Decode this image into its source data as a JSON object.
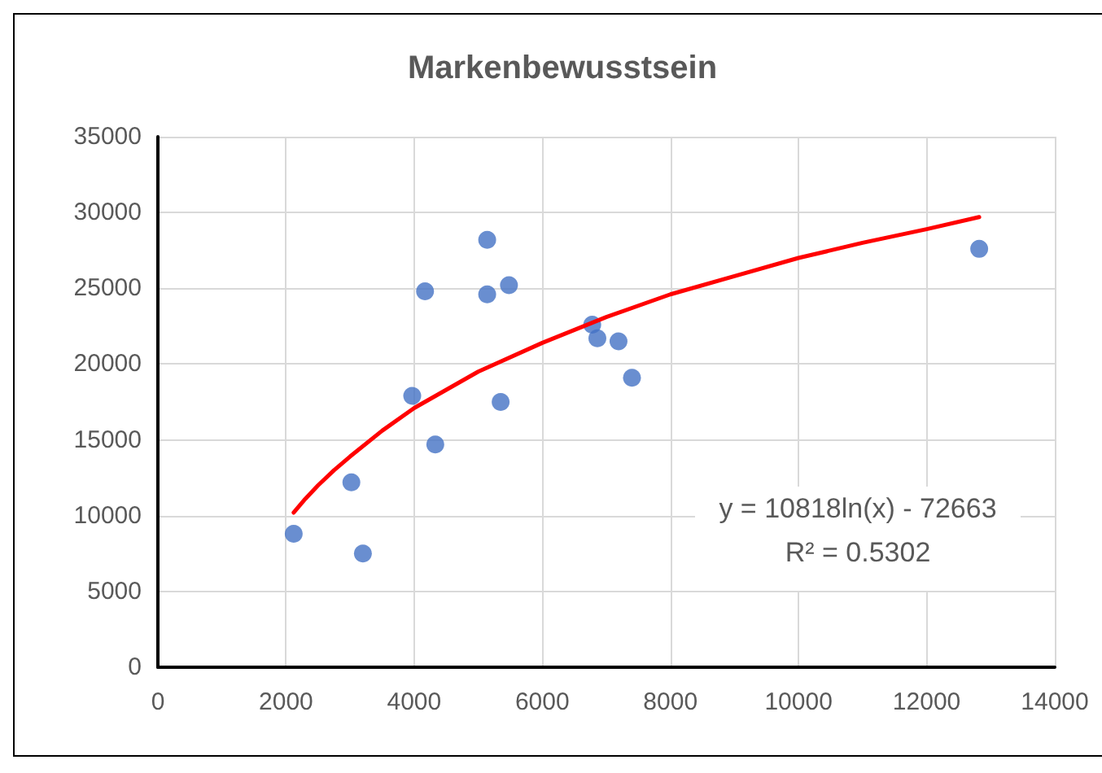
{
  "chart_data": {
    "type": "scatter",
    "title": "Markenbewusstsein",
    "xlim": [
      0,
      14000
    ],
    "xticks": [
      0,
      2000,
      4000,
      6000,
      8000,
      10000,
      12000,
      14000
    ],
    "ylim": [
      0,
      35000
    ],
    "yticks": [
      0,
      5000,
      10000,
      15000,
      20000,
      25000,
      30000,
      35000
    ],
    "grid": true,
    "marker": "circle",
    "series": [
      {
        "color": "#4472c4",
        "x": [
          2120,
          3020,
          3200,
          3970,
          4170,
          4330,
          5140,
          5140,
          5480,
          5350,
          6780,
          6860,
          7190,
          7400,
          12820
        ],
        "values": [
          8800,
          12200,
          7500,
          17900,
          24800,
          14700,
          28200,
          24600,
          25200,
          17500,
          22600,
          21700,
          21500,
          19100,
          27600
        ]
      },
      {
        "type": "line",
        "color": "#ff0000",
        "line_style": "solid",
        "marker": "none",
        "x": [
          2120,
          2300,
          2500,
          2750,
          3000,
          3500,
          4000,
          5000,
          6000,
          7000,
          8000,
          9000,
          10000,
          11000,
          12000,
          12820
        ],
        "values": [
          10200,
          11100,
          12000,
          13000,
          13900,
          15600,
          17100,
          19500,
          21400,
          23100,
          24600,
          25800,
          27000,
          28000,
          28900,
          29700
        ]
      }
    ],
    "annotations": [
      "y = 10818ln(x) - 72663",
      "R² = 0.5302"
    ]
  }
}
